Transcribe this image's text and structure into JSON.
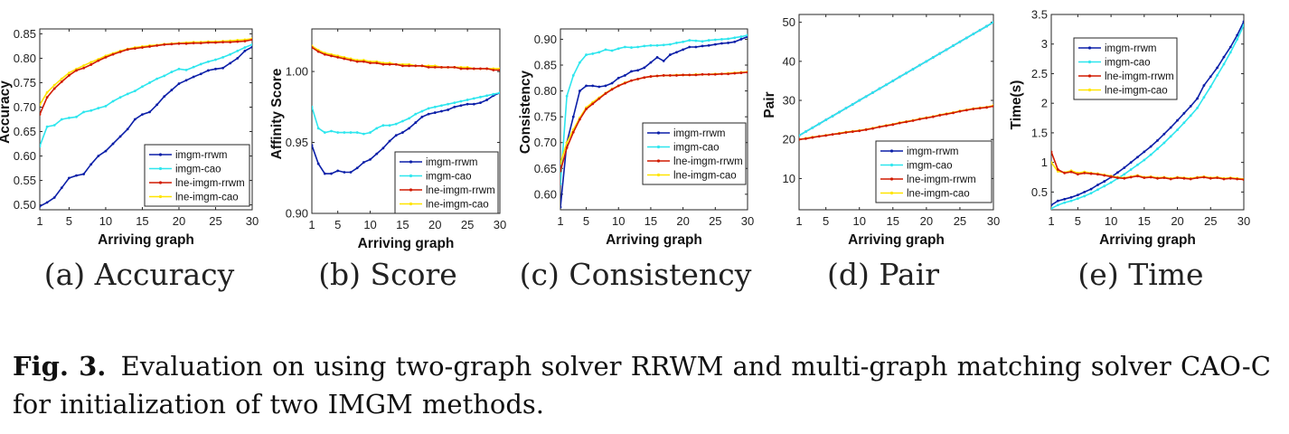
{
  "colors": {
    "imgm-rrwm": "#0b1fa8",
    "imgm-cao": "#2ee6ee",
    "lne-imgm-rrwm": "#d11a00",
    "lne-imgm-cao": "#ffe400"
  },
  "caption": {
    "label": "Fig. 3.",
    "text": "Evaluation on using two-graph solver RRWM and multi-graph matching solver CAO-C for initialization of two IMGM methods."
  },
  "chart_data": [
    {
      "id": "a",
      "type": "line",
      "subcaption": "(a) Accuracy",
      "xlabel": "Arriving graph",
      "ylabel": "Accuracy",
      "xlim": [
        1,
        30
      ],
      "ylim": [
        0.49,
        0.86
      ],
      "xticks": [
        1,
        5,
        10,
        15,
        20,
        25,
        30
      ],
      "yticks": [
        0.5,
        0.55,
        0.6,
        0.65,
        0.7,
        0.75,
        0.8,
        0.85
      ],
      "ytick_labels": [
        "0.50",
        "0.55",
        "0.60",
        "0.65",
        "0.70",
        "0.75",
        "0.80",
        "0.85"
      ],
      "legend": "bottom-right",
      "x": [
        1,
        2,
        3,
        4,
        5,
        6,
        7,
        8,
        9,
        10,
        11,
        12,
        13,
        14,
        15,
        16,
        17,
        18,
        19,
        20,
        21,
        22,
        23,
        24,
        25,
        26,
        27,
        28,
        29,
        30
      ],
      "series": [
        {
          "name": "imgm-rrwm",
          "values": [
            0.497,
            0.505,
            0.515,
            0.535,
            0.555,
            0.56,
            0.563,
            0.583,
            0.6,
            0.61,
            0.625,
            0.64,
            0.655,
            0.675,
            0.685,
            0.69,
            0.705,
            0.722,
            0.735,
            0.748,
            0.755,
            0.762,
            0.768,
            0.775,
            0.778,
            0.78,
            0.79,
            0.8,
            0.815,
            0.823
          ]
        },
        {
          "name": "imgm-cao",
          "values": [
            0.62,
            0.66,
            0.663,
            0.675,
            0.678,
            0.68,
            0.69,
            0.693,
            0.698,
            0.702,
            0.712,
            0.72,
            0.727,
            0.733,
            0.742,
            0.75,
            0.758,
            0.764,
            0.772,
            0.778,
            0.776,
            0.782,
            0.788,
            0.793,
            0.797,
            0.802,
            0.808,
            0.815,
            0.822,
            0.828
          ]
        },
        {
          "name": "lne-imgm-rrwm",
          "values": [
            0.685,
            0.72,
            0.738,
            0.752,
            0.765,
            0.775,
            0.78,
            0.787,
            0.795,
            0.802,
            0.808,
            0.813,
            0.818,
            0.82,
            0.822,
            0.824,
            0.826,
            0.828,
            0.829,
            0.83,
            0.83,
            0.831,
            0.831,
            0.832,
            0.832,
            0.833,
            0.833,
            0.834,
            0.835,
            0.838
          ]
        },
        {
          "name": "lne-imgm-cao",
          "values": [
            0.705,
            0.73,
            0.745,
            0.758,
            0.77,
            0.778,
            0.785,
            0.792,
            0.798,
            0.805,
            0.81,
            0.815,
            0.819,
            0.822,
            0.824,
            0.826,
            0.827,
            0.829,
            0.83,
            0.831,
            0.832,
            0.833,
            0.833,
            0.834,
            0.834,
            0.835,
            0.836,
            0.837,
            0.838,
            0.84
          ]
        }
      ]
    },
    {
      "id": "b",
      "type": "line",
      "subcaption": "(b) Score",
      "xlabel": "Arriving graph",
      "ylabel": "Affinity Score",
      "xlim": [
        1,
        30
      ],
      "ylim": [
        0.9,
        1.03
      ],
      "xticks": [
        1,
        5,
        10,
        15,
        20,
        25,
        30
      ],
      "yticks": [
        0.9,
        0.95,
        1.0
      ],
      "ytick_labels": [
        "0.90",
        "0.95",
        "1.00"
      ],
      "legend": "bottom-right",
      "x": [
        1,
        2,
        3,
        4,
        5,
        6,
        7,
        8,
        9,
        10,
        11,
        12,
        13,
        14,
        15,
        16,
        17,
        18,
        19,
        20,
        21,
        22,
        23,
        24,
        25,
        26,
        27,
        28,
        29,
        30
      ],
      "series": [
        {
          "name": "imgm-rrwm",
          "values": [
            0.948,
            0.935,
            0.928,
            0.928,
            0.93,
            0.929,
            0.929,
            0.932,
            0.936,
            0.938,
            0.942,
            0.946,
            0.951,
            0.955,
            0.957,
            0.96,
            0.964,
            0.968,
            0.97,
            0.971,
            0.972,
            0.973,
            0.975,
            0.976,
            0.977,
            0.977,
            0.978,
            0.98,
            0.983,
            0.985
          ]
        },
        {
          "name": "imgm-cao",
          "values": [
            0.975,
            0.96,
            0.957,
            0.958,
            0.957,
            0.957,
            0.957,
            0.957,
            0.956,
            0.957,
            0.96,
            0.962,
            0.962,
            0.963,
            0.965,
            0.967,
            0.97,
            0.972,
            0.974,
            0.975,
            0.976,
            0.977,
            0.978,
            0.979,
            0.98,
            0.981,
            0.982,
            0.983,
            0.984,
            0.985
          ]
        },
        {
          "name": "lne-imgm-rrwm",
          "values": [
            1.017,
            1.014,
            1.012,
            1.011,
            1.01,
            1.009,
            1.008,
            1.007,
            1.007,
            1.006,
            1.006,
            1.005,
            1.005,
            1.005,
            1.004,
            1.004,
            1.004,
            1.004,
            1.003,
            1.003,
            1.003,
            1.003,
            1.003,
            1.002,
            1.002,
            1.002,
            1.002,
            1.002,
            1.001,
            1.001
          ]
        },
        {
          "name": "lne-imgm-cao",
          "values": [
            1.018,
            1.015,
            1.013,
            1.012,
            1.011,
            1.01,
            1.009,
            1.008,
            1.008,
            1.007,
            1.007,
            1.006,
            1.006,
            1.005,
            1.005,
            1.005,
            1.004,
            1.004,
            1.004,
            1.004,
            1.003,
            1.003,
            1.003,
            1.003,
            1.003,
            1.002,
            1.002,
            1.002,
            1.002,
            1.002
          ]
        }
      ]
    },
    {
      "id": "c",
      "type": "line",
      "subcaption": "(c) Consistency",
      "xlabel": "Arriving graph",
      "ylabel": "Consistency",
      "xlim": [
        1,
        30
      ],
      "ylim": [
        0.57,
        0.92
      ],
      "xticks": [
        1,
        5,
        10,
        15,
        20,
        25,
        30
      ],
      "yticks": [
        0.6,
        0.65,
        0.7,
        0.75,
        0.8,
        0.85,
        0.9
      ],
      "ytick_labels": [
        "0.60",
        "0.65",
        "0.70",
        "0.75",
        "0.80",
        "0.85",
        "0.90"
      ],
      "legend": "right",
      "x": [
        1,
        2,
        3,
        4,
        5,
        6,
        7,
        8,
        9,
        10,
        11,
        12,
        13,
        14,
        15,
        16,
        17,
        18,
        19,
        20,
        21,
        22,
        23,
        24,
        25,
        26,
        27,
        28,
        29,
        30
      ],
      "series": [
        {
          "name": "imgm-rrwm",
          "values": [
            0.575,
            0.7,
            0.75,
            0.8,
            0.81,
            0.81,
            0.808,
            0.81,
            0.815,
            0.825,
            0.83,
            0.838,
            0.84,
            0.845,
            0.855,
            0.865,
            0.858,
            0.87,
            0.875,
            0.88,
            0.885,
            0.885,
            0.887,
            0.888,
            0.89,
            0.892,
            0.893,
            0.895,
            0.9,
            0.905
          ]
        },
        {
          "name": "imgm-cao",
          "values": [
            0.62,
            0.79,
            0.83,
            0.855,
            0.87,
            0.872,
            0.875,
            0.88,
            0.878,
            0.882,
            0.885,
            0.884,
            0.885,
            0.887,
            0.888,
            0.888,
            0.889,
            0.89,
            0.893,
            0.895,
            0.898,
            0.897,
            0.896,
            0.898,
            0.899,
            0.9,
            0.901,
            0.903,
            0.905,
            0.908
          ]
        },
        {
          "name": "lne-imgm-rrwm",
          "values": [
            0.645,
            0.69,
            0.72,
            0.745,
            0.765,
            0.775,
            0.785,
            0.795,
            0.803,
            0.81,
            0.815,
            0.82,
            0.823,
            0.826,
            0.828,
            0.829,
            0.83,
            0.83,
            0.83,
            0.831,
            0.831,
            0.831,
            0.832,
            0.832,
            0.832,
            0.833,
            0.833,
            0.834,
            0.835,
            0.836
          ]
        },
        {
          "name": "lne-imgm-cao",
          "values": [
            0.66,
            0.7,
            0.725,
            0.748,
            0.768,
            0.778,
            0.787,
            0.796,
            0.804,
            0.81,
            0.816,
            0.82,
            0.823,
            0.826,
            0.828,
            0.829,
            0.83,
            0.83,
            0.831,
            0.831,
            0.831,
            0.832,
            0.832,
            0.832,
            0.833,
            0.833,
            0.834,
            0.835,
            0.836,
            0.837
          ]
        }
      ]
    },
    {
      "id": "d",
      "type": "line",
      "subcaption": "(d) Pair",
      "xlabel": "Arriving graph",
      "ylabel": "Pair",
      "xlim": [
        1,
        30
      ],
      "ylim": [
        2,
        52
      ],
      "xticks": [
        1,
        5,
        10,
        15,
        20,
        25,
        30
      ],
      "yticks": [
        10,
        20,
        30,
        40,
        50
      ],
      "ytick_labels": [
        "10",
        "20",
        "30",
        "40",
        "50"
      ],
      "legend": "bottom-right",
      "x": [
        1,
        2,
        3,
        4,
        5,
        6,
        7,
        8,
        9,
        10,
        11,
        12,
        13,
        14,
        15,
        16,
        17,
        18,
        19,
        20,
        21,
        22,
        23,
        24,
        25,
        26,
        27,
        28,
        29,
        30
      ],
      "series": [
        {
          "name": "imgm-rrwm",
          "values": [
            21,
            22,
            23,
            24,
            25,
            26,
            27,
            28,
            29,
            30,
            31,
            32,
            33,
            34,
            35,
            36,
            37,
            38,
            39,
            40,
            41,
            42,
            43,
            44,
            45,
            46,
            47,
            48,
            49,
            50
          ]
        },
        {
          "name": "imgm-cao",
          "values": [
            21,
            22,
            23,
            24,
            25,
            26,
            27,
            28,
            29,
            30,
            31,
            32,
            33,
            34,
            35,
            36,
            37,
            38,
            39,
            40,
            41,
            42,
            43,
            44,
            45,
            46,
            47,
            48,
            49,
            50
          ]
        },
        {
          "name": "lne-imgm-rrwm",
          "values": [
            20,
            20.2,
            20.5,
            20.8,
            21,
            21.3,
            21.5,
            21.8,
            22,
            22.2,
            22.5,
            22.8,
            23.2,
            23.5,
            23.8,
            24.2,
            24.5,
            24.8,
            25.2,
            25.5,
            25.8,
            26.2,
            26.5,
            26.8,
            27.2,
            27.5,
            27.8,
            28,
            28.2,
            28.5
          ]
        },
        {
          "name": "lne-imgm-cao",
          "values": [
            20,
            20.3,
            20.6,
            20.8,
            21.1,
            21.3,
            21.6,
            21.9,
            22.1,
            22.3,
            22.6,
            22.9,
            23.3,
            23.6,
            23.9,
            24.3,
            24.6,
            24.9,
            25.3,
            25.6,
            25.9,
            26.3,
            26.6,
            26.9,
            27.3,
            27.6,
            27.9,
            28.1,
            28.3,
            28.7
          ]
        }
      ]
    },
    {
      "id": "e",
      "type": "line",
      "subcaption": "(e) Time",
      "xlabel": "Arriving graph",
      "ylabel": "Time(s)",
      "xlim": [
        1,
        30
      ],
      "ylim": [
        0.2,
        3.5
      ],
      "xticks": [
        1,
        5,
        10,
        15,
        20,
        25,
        30
      ],
      "yticks": [
        0.5,
        1,
        1.5,
        2,
        2.5,
        3,
        3.5
      ],
      "ytick_labels": [
        "0.5",
        "1",
        "1.5",
        "2",
        "2.5",
        "3",
        "3.5"
      ],
      "legend": "top-left",
      "x": [
        1,
        2,
        3,
        4,
        5,
        6,
        7,
        8,
        9,
        10,
        11,
        12,
        13,
        14,
        15,
        16,
        17,
        18,
        19,
        20,
        21,
        22,
        23,
        24,
        25,
        26,
        27,
        28,
        29,
        30
      ],
      "series": [
        {
          "name": "imgm-rrwm",
          "values": [
            0.28,
            0.35,
            0.38,
            0.41,
            0.45,
            0.5,
            0.55,
            0.62,
            0.68,
            0.75,
            0.83,
            0.91,
            1.0,
            1.09,
            1.18,
            1.27,
            1.37,
            1.48,
            1.59,
            1.71,
            1.83,
            1.95,
            2.08,
            2.3,
            2.45,
            2.6,
            2.78,
            2.95,
            3.15,
            3.38
          ]
        },
        {
          "name": "imgm-cao",
          "values": [
            0.22,
            0.28,
            0.32,
            0.35,
            0.39,
            0.43,
            0.48,
            0.54,
            0.6,
            0.66,
            0.73,
            0.8,
            0.88,
            0.96,
            1.04,
            1.13,
            1.23,
            1.33,
            1.44,
            1.55,
            1.67,
            1.79,
            1.92,
            2.1,
            2.28,
            2.47,
            2.66,
            2.86,
            3.08,
            3.32
          ]
        },
        {
          "name": "lne-imgm-rrwm",
          "values": [
            1.18,
            0.88,
            0.82,
            0.84,
            0.8,
            0.82,
            0.81,
            0.8,
            0.78,
            0.76,
            0.74,
            0.73,
            0.75,
            0.77,
            0.74,
            0.75,
            0.73,
            0.74,
            0.72,
            0.74,
            0.73,
            0.72,
            0.74,
            0.75,
            0.73,
            0.74,
            0.72,
            0.73,
            0.72,
            0.71
          ]
        },
        {
          "name": "lne-imgm-cao",
          "values": [
            1.0,
            0.85,
            0.83,
            0.86,
            0.82,
            0.84,
            0.82,
            0.81,
            0.79,
            0.77,
            0.75,
            0.74,
            0.76,
            0.78,
            0.75,
            0.76,
            0.74,
            0.75,
            0.73,
            0.75,
            0.74,
            0.73,
            0.75,
            0.76,
            0.74,
            0.75,
            0.73,
            0.74,
            0.73,
            0.72
          ]
        }
      ]
    }
  ]
}
